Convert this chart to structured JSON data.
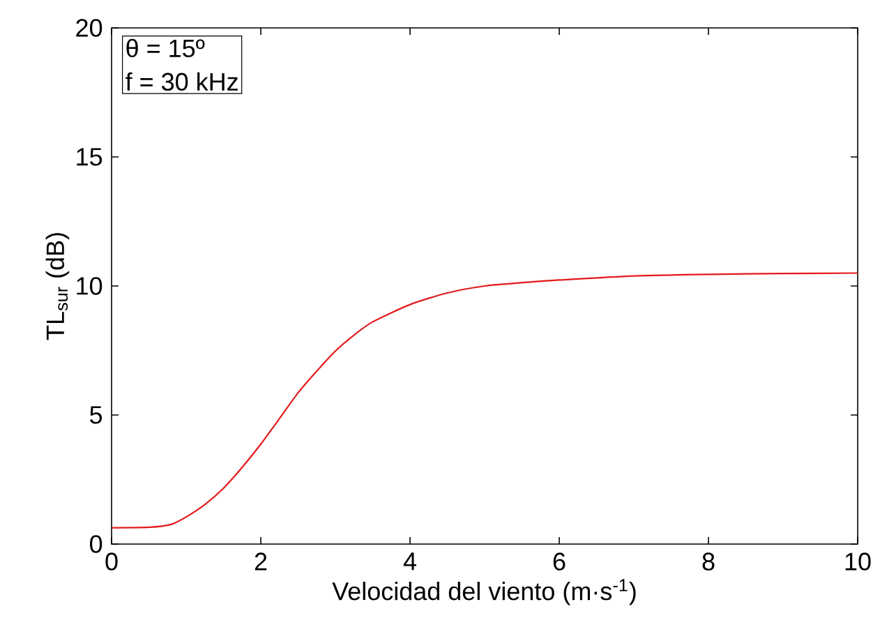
{
  "chart_data": {
    "type": "line",
    "xlabel": "Velocidad del viento (m·s$^{-1}$)",
    "ylabel": "TL$_{sur}$ (dB)",
    "annotations": [
      "θ = 15º",
      "f = 30 kHz"
    ],
    "xlim": [
      0,
      10
    ],
    "ylim": [
      0,
      20
    ],
    "xticks": [
      0,
      2,
      4,
      6,
      8,
      10
    ],
    "yticks": [
      0,
      5,
      10,
      15,
      20
    ],
    "grid": false,
    "marker": "none",
    "line_style": "solid",
    "series": [
      {
        "color": "#e41a1c",
        "x": [
          0,
          0.5,
          0.8,
          1.0,
          1.25,
          1.5,
          1.75,
          2.0,
          2.25,
          2.5,
          2.75,
          3.0,
          3.25,
          3.5,
          4.0,
          4.5,
          5.0,
          5.5,
          6,
          7,
          8,
          9,
          10
        ],
        "values": [
          0.63,
          0.65,
          0.76,
          1.05,
          1.53,
          2.16,
          2.97,
          3.87,
          4.86,
          5.86,
          6.7,
          7.48,
          8.1,
          8.61,
          9.28,
          9.73,
          10.0,
          10.13,
          10.23,
          10.39,
          10.45,
          10.48,
          10.5
        ]
      }
    ]
  }
}
